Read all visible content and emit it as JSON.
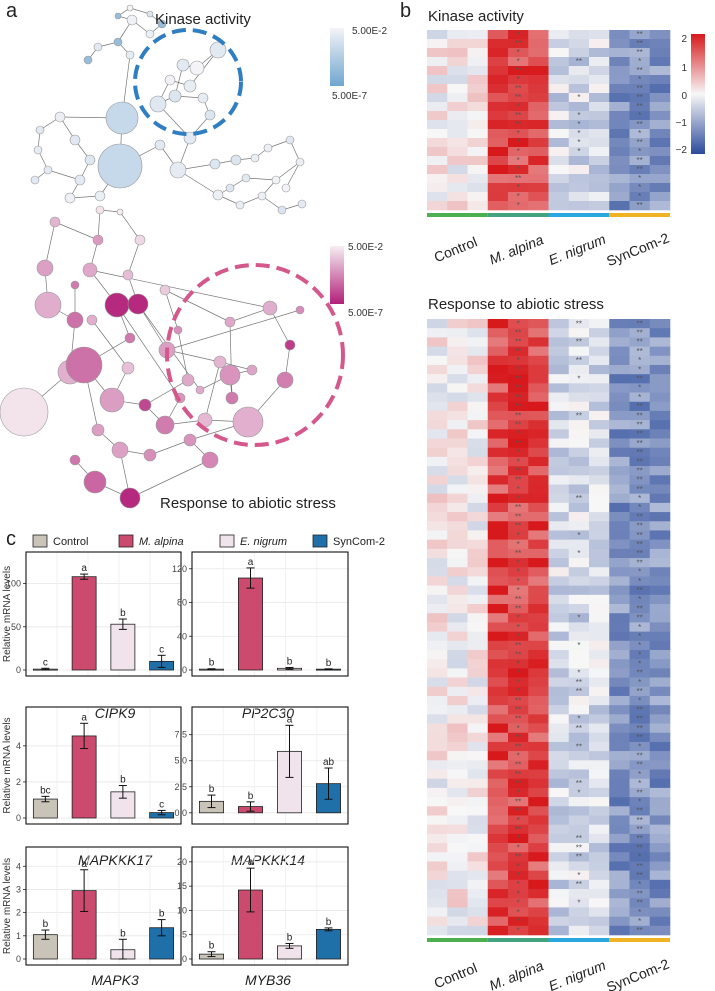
{
  "panels": {
    "a": "a",
    "b": "b",
    "c": "c"
  },
  "network": {
    "kinase_label": "Kinase activity",
    "stress_label": "Response to abiotic stress",
    "kinase_colorbar": {
      "high": "5.00E-2",
      "low": "5.00E-7",
      "color_high": "#f4f4f8",
      "color_low": "#6fa6cf"
    },
    "stress_colorbar": {
      "high": "5.00E-2",
      "low": "5.00E-7",
      "color_high": "#f6eef2",
      "color_low": "#b21f79"
    }
  },
  "heatmap": {
    "colorbar": {
      "ticks": [
        "2",
        "1",
        "0",
        "−1",
        "−2"
      ],
      "color_high": "#d7191c",
      "color_mid": "#f7f7f7",
      "color_low": "#2b4b9b"
    },
    "groups": [
      {
        "name": "Control",
        "color": "#4caf50",
        "italic": false
      },
      {
        "name": "M. alpina",
        "color": "#43a37e",
        "italic": true
      },
      {
        "name": "E. nigrum",
        "color": "#29a8e0",
        "italic": true
      },
      {
        "name": "SynCom-2",
        "color": "#f0b323",
        "italic": false
      }
    ],
    "kinase": {
      "title": "Kinase activity",
      "rows": 20
    },
    "stress": {
      "title": "Response to abiotic stress",
      "rows": 67
    }
  },
  "legend": {
    "items": [
      {
        "name": "Control",
        "color": "#c9c3b8",
        "italic": false
      },
      {
        "name": "M. alpina",
        "color": "#cd4a6f",
        "italic": true
      },
      {
        "name": "E. nigrum",
        "color": "#f1e3ec",
        "italic": true
      },
      {
        "name": "SynCom-2",
        "color": "#1f6fa8",
        "italic": false
      }
    ]
  },
  "y_axis_label": "Relative mRNA levels",
  "chart_data": [
    {
      "type": "bar",
      "title": "CIPK9",
      "categories": [
        "Control",
        "M. alpina",
        "E. nigrum",
        "SynCom-2"
      ],
      "values": [
        1,
        108,
        53,
        10
      ],
      "errors": [
        1,
        3,
        6,
        7
      ],
      "letters": [
        "c",
        "a",
        "b",
        "c"
      ],
      "ylim": [
        0,
        125
      ],
      "yticks": [
        0,
        50,
        100
      ],
      "ylabel": "Relative mRNA levels"
    },
    {
      "type": "bar",
      "title": "PP2C30",
      "categories": [
        "Control",
        "M. alpina",
        "E. nigrum",
        "SynCom-2"
      ],
      "values": [
        1,
        109,
        2,
        1
      ],
      "errors": [
        0.5,
        12,
        1,
        0.4
      ],
      "letters": [
        "b",
        "a",
        "b",
        "b"
      ],
      "ylim": [
        0,
        128
      ],
      "yticks": [
        0,
        40,
        80,
        120
      ],
      "ylabel": ""
    },
    {
      "type": "bar",
      "title": "MAPKKK17",
      "categories": [
        "Control",
        "M. alpina",
        "E. nigrum",
        "SynCom-2"
      ],
      "values": [
        1.05,
        4.55,
        1.45,
        0.3
      ],
      "errors": [
        0.15,
        0.7,
        0.35,
        0.12
      ],
      "letters": [
        "bc",
        "a",
        "b",
        "c"
      ],
      "ylim": [
        0,
        5.6
      ],
      "yticks": [
        0,
        2,
        4
      ],
      "ylabel": "Relative mRNA levels"
    },
    {
      "type": "bar",
      "title": "MAPKKK14",
      "categories": [
        "Control",
        "M. alpina",
        "E. nigrum",
        "SynCom-2"
      ],
      "values": [
        1.1,
        0.6,
        5.9,
        2.8
      ],
      "errors": [
        0.6,
        0.45,
        2.5,
        1.5
      ],
      "letters": [
        "b",
        "b",
        "a",
        "ab"
      ],
      "ylim": [
        -0.5,
        9.2
      ],
      "yticks": [
        0.0,
        2.5,
        5.0,
        7.5
      ],
      "ylabel": ""
    },
    {
      "type": "bar",
      "title": "MAPK3",
      "categories": [
        "Control",
        "M. alpina",
        "E. nigrum",
        "SynCom-2"
      ],
      "values": [
        1.05,
        2.95,
        0.4,
        1.35
      ],
      "errors": [
        0.2,
        0.9,
        0.45,
        0.35
      ],
      "letters": [
        "b",
        "a",
        "b",
        "b"
      ],
      "ylim": [
        0,
        4.4
      ],
      "yticks": [
        0,
        1,
        2,
        3,
        4
      ],
      "ylabel": "Relative mRNA levels"
    },
    {
      "type": "bar",
      "title": "MYB36",
      "categories": [
        "Control",
        "M. alpina",
        "E. nigrum",
        "SynCom-2"
      ],
      "values": [
        1.0,
        14.2,
        2.7,
        6.1
      ],
      "errors": [
        0.5,
        4.5,
        0.5,
        0.3
      ],
      "letters": [
        "b",
        "a",
        "b",
        "b"
      ],
      "ylim": [
        0,
        21
      ],
      "yticks": [
        0,
        5,
        10,
        15,
        20
      ],
      "ylabel": ""
    }
  ]
}
